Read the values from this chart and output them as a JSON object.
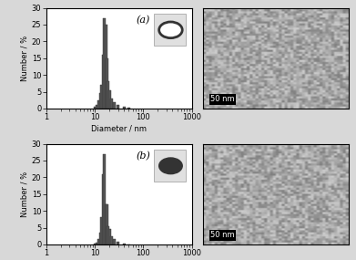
{
  "panel_a": {
    "label": "(a)",
    "bar_centers_nm": [
      10,
      11,
      12,
      13,
      14,
      15,
      16,
      17,
      18,
      19,
      20,
      22,
      25,
      30,
      40,
      50
    ],
    "bar_heights": [
      0.5,
      1.0,
      2.5,
      4.5,
      7.0,
      16.0,
      27.0,
      25.0,
      15.0,
      8.0,
      5.5,
      3.0,
      2.0,
      1.0,
      0.5,
      0.2
    ],
    "circle_filled": false
  },
  "panel_b": {
    "label": "(b)",
    "bar_centers_nm": [
      10,
      11,
      12,
      13,
      14,
      15,
      16,
      17,
      18,
      19,
      20,
      22,
      25,
      30,
      40,
      50
    ],
    "bar_heights": [
      0.2,
      0.5,
      1.5,
      3.5,
      8.0,
      21.0,
      27.0,
      12.0,
      12.0,
      5.5,
      4.5,
      2.5,
      1.5,
      0.8,
      0.3,
      0.1
    ],
    "circle_filled": true
  },
  "bar_color": "#555555",
  "bar_edge_color": "#333333",
  "xlim": [
    1,
    1000
  ],
  "ylim": [
    0,
    30
  ],
  "yticks": [
    0,
    5,
    10,
    15,
    20,
    25,
    30
  ],
  "ylabel": "Number / %",
  "xlabel": "Diameter / nm",
  "bg_color": "#f0f0f0",
  "stem_image_color": "#aaaaaa",
  "scalebar_label": "50 nm",
  "figure_bg": "#e8e8e8"
}
